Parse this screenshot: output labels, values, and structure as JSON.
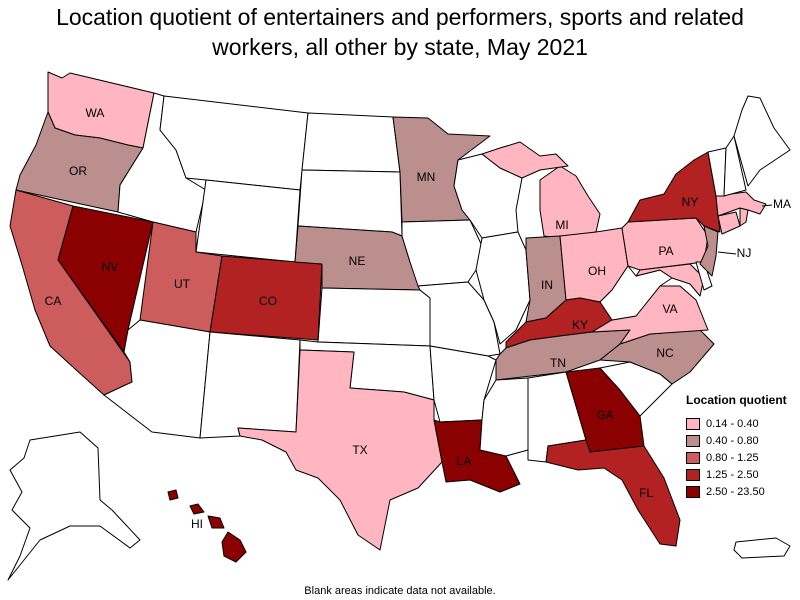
{
  "title_lines": [
    "Location quotient of entertainers and performers, sports and related",
    "workers, all other by state, May 2021"
  ],
  "legend": {
    "title": "Location quotient",
    "items": [
      {
        "label": "0.14 - 0.40",
        "color": "#ffb6c1"
      },
      {
        "label": "0.40 - 0.80",
        "color": "#bc8f8f"
      },
      {
        "label": "0.80 - 1.25",
        "color": "#cd5c5c"
      },
      {
        "label": "1.25 - 2.50",
        "color": "#b22222"
      },
      {
        "label": "2.50 - 23.50",
        "color": "#8b0000"
      }
    ]
  },
  "footnote": "Blank areas indicate data not available.",
  "colors": {
    "no_data": "#ffffff",
    "border": "#000000"
  },
  "state_labels": {
    "WA": "WA",
    "OR": "OR",
    "CA": "CA",
    "NV": "NV",
    "UT": "UT",
    "CO": "CO",
    "NE": "NE",
    "MN": "MN",
    "MI": "MI",
    "IN": "IN",
    "OH": "OH",
    "KY": "KY",
    "TN": "TN",
    "NC": "NC",
    "VA": "VA",
    "PA": "PA",
    "NY": "NY",
    "NJ": "NJ",
    "MA": "MA",
    "GA": "GA",
    "FL": "FL",
    "LA": "LA",
    "TX": "TX",
    "HI": "HI"
  },
  "state_classes": {
    "WA": 0,
    "OR": 1,
    "CA": 2,
    "NV": 4,
    "UT": 2,
    "CO": 3,
    "NE": 1,
    "MN": 1,
    "MI": 0,
    "IN": 1,
    "OH": 0,
    "KY": 3,
    "TN": 1,
    "NC": 1,
    "VA": 0,
    "PA": 0,
    "NY": 3,
    "NJ": 1,
    "MA": 0,
    "GA": 4,
    "FL": 3,
    "LA": 4,
    "TX": 0,
    "HI": 4,
    "CT": 0,
    "RI": 0,
    "MD": 0
  }
}
